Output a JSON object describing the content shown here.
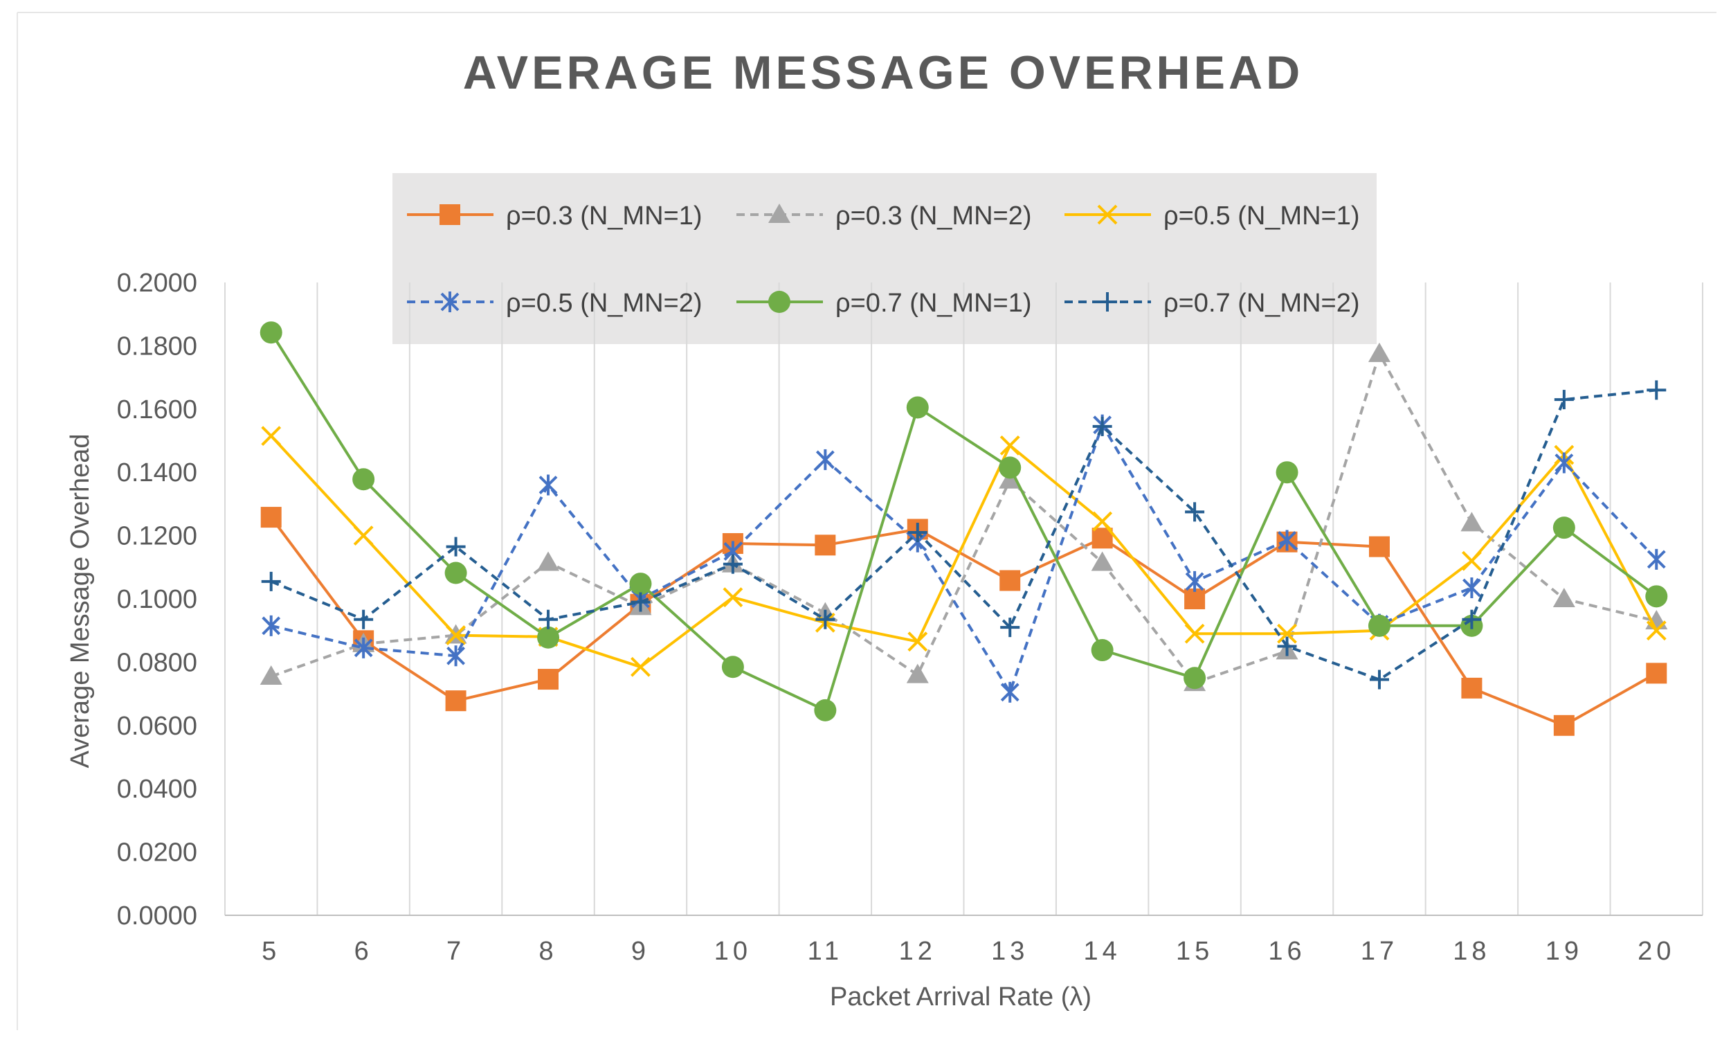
{
  "chart_data": {
    "type": "line",
    "title": "AVERAGE MESSAGE OVERHEAD",
    "xlabel": "Packet Arrival Rate  (λ)",
    "ylabel": "Average Message Overhead",
    "categories": [
      "5",
      "6",
      "7",
      "8",
      "9",
      "10",
      "11",
      "12",
      "13",
      "14",
      "15",
      "16",
      "17",
      "18",
      "19",
      "20"
    ],
    "ylim": [
      0,
      0.2
    ],
    "yticks": [
      0,
      0.02,
      0.04,
      0.06,
      0.08,
      0.1,
      0.12,
      0.14,
      0.16,
      0.18,
      0.2
    ],
    "ytick_labels": [
      "0.0000",
      "0.0200",
      "0.0400",
      "0.0600",
      "0.0800",
      "0.1000",
      "0.1200",
      "0.1400",
      "0.1600",
      "0.1800",
      "0.2000"
    ],
    "grid": "vertical",
    "legend_position": "top",
    "series": [
      {
        "name": "ρ=0.3 (N_MN=1)",
        "color": "#ED7D31",
        "dash": "solid",
        "marker": "square",
        "values": [
          0.1258,
          0.0868,
          0.0678,
          0.0746,
          0.0983,
          0.1175,
          0.117,
          0.122,
          0.1058,
          0.1192,
          0.1,
          0.118,
          0.1165,
          0.0718,
          0.06,
          0.0765
        ]
      },
      {
        "name": "ρ=0.3 (N_MN=2)",
        "color": "#A5A5A5",
        "dash": "dashed",
        "marker": "triangle",
        "values": [
          0.0755,
          0.0858,
          0.0885,
          0.1115,
          0.0975,
          0.111,
          0.0955,
          0.076,
          0.1375,
          0.1115,
          0.0735,
          0.0835,
          0.1775,
          0.124,
          0.1,
          0.093
        ]
      },
      {
        "name": "ρ=0.5 (N_MN=1)",
        "color": "#FFC000",
        "dash": "solid",
        "marker": "x",
        "values": [
          0.1515,
          0.12,
          0.0885,
          0.088,
          0.0785,
          0.1005,
          0.0925,
          0.0865,
          0.1485,
          0.1245,
          0.089,
          0.089,
          0.09,
          0.112,
          0.1455,
          0.09
        ]
      },
      {
        "name": "ρ=0.5 (N_MN=2)",
        "color": "#4472C4",
        "dash": "dashed",
        "marker": "asterisk",
        "values": [
          0.0915,
          0.0845,
          0.082,
          0.136,
          0.1,
          0.115,
          0.144,
          0.118,
          0.0705,
          0.155,
          0.1055,
          0.1185,
          0.092,
          0.1035,
          0.143,
          0.1125
        ]
      },
      {
        "name": "ρ=0.7 (N_MN=1)",
        "color": "#70AD47",
        "dash": "solid",
        "marker": "circle",
        "values": [
          0.1842,
          0.1378,
          0.1082,
          0.0878,
          0.1048,
          0.0785,
          0.0648,
          0.1605,
          0.1415,
          0.0838,
          0.075,
          0.14,
          0.0915,
          0.0915,
          0.1225,
          0.1008
        ]
      },
      {
        "name": "ρ=0.7 (N_MN=2)",
        "color": "#255E91",
        "dash": "dashed",
        "marker": "plus",
        "values": [
          0.1055,
          0.0935,
          0.1165,
          0.0935,
          0.099,
          0.111,
          0.0935,
          0.121,
          0.091,
          0.1545,
          0.1275,
          0.085,
          0.0745,
          0.0935,
          0.163,
          0.166
        ]
      }
    ]
  }
}
